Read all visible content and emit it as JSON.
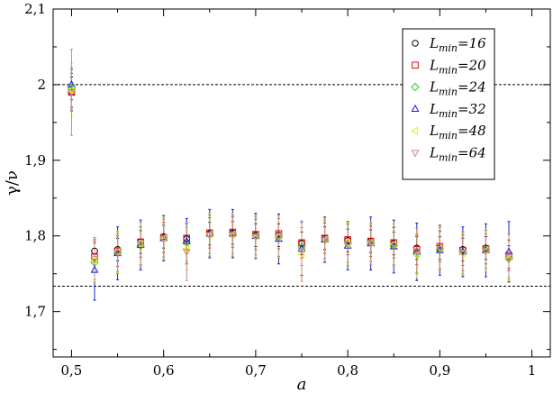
{
  "chart_data": {
    "type": "scatter",
    "title": "",
    "xlabel": "a",
    "ylabel": "γ/ν",
    "xlim": [
      0.48,
      1.02
    ],
    "ylim": [
      1.64,
      2.1
    ],
    "x_ticks": [
      0.5,
      0.6,
      0.7,
      0.8,
      0.9,
      1.0
    ],
    "x_tick_labels": [
      "0,5",
      "0,6",
      "0,7",
      "0,8",
      "0,9",
      "1"
    ],
    "y_ticks": [
      1.7,
      1.8,
      1.9,
      2.0,
      2.1
    ],
    "y_tick_labels": [
      "1,7",
      "1,8",
      "1,9",
      "2",
      "2,1"
    ],
    "reference_lines": [
      2.0,
      1.7335
    ],
    "grid": false,
    "legend_position": "top-right",
    "x": [
      0.5,
      0.525,
      0.55,
      0.575,
      0.6,
      0.625,
      0.65,
      0.675,
      0.7,
      0.725,
      0.75,
      0.775,
      0.8,
      0.825,
      0.85,
      0.875,
      0.9,
      0.925,
      0.95,
      0.975
    ],
    "series": [
      {
        "name": "16",
        "marker": "circle",
        "color": "#000000",
        "values": [
          1.99,
          1.78,
          1.782,
          1.792,
          1.799,
          1.796,
          1.803,
          1.804,
          1.801,
          1.801,
          1.79,
          1.797,
          1.794,
          1.793,
          1.79,
          1.784,
          1.784,
          1.782,
          1.784,
          1.772
        ],
        "errors": [
          0.02,
          0.015,
          0.015,
          0.015,
          0.015,
          0.015,
          0.015,
          0.015,
          0.015,
          0.015,
          0.015,
          0.015,
          0.015,
          0.015,
          0.015,
          0.015,
          0.015,
          0.015,
          0.015,
          0.015
        ]
      },
      {
        "name": "20",
        "marker": "square",
        "color": "#e8000b",
        "values": [
          1.99,
          1.772,
          1.78,
          1.792,
          1.798,
          1.797,
          1.804,
          1.805,
          1.802,
          1.803,
          1.791,
          1.797,
          1.795,
          1.793,
          1.791,
          1.782,
          1.786,
          1.781,
          1.783,
          1.774
        ],
        "errors": [
          0.025,
          0.02,
          0.02,
          0.02,
          0.02,
          0.02,
          0.02,
          0.02,
          0.02,
          0.02,
          0.02,
          0.02,
          0.02,
          0.02,
          0.02,
          0.02,
          0.02,
          0.02,
          0.02,
          0.02
        ]
      },
      {
        "name": "24",
        "marker": "diamond",
        "color": "#22cc22",
        "values": [
          1.995,
          1.765,
          1.778,
          1.787,
          1.797,
          1.791,
          1.802,
          1.802,
          1.8,
          1.798,
          1.786,
          1.795,
          1.79,
          1.791,
          1.787,
          1.776,
          1.782,
          1.779,
          1.782,
          1.77
        ],
        "errors": [
          0.028,
          0.025,
          0.025,
          0.025,
          0.025,
          0.025,
          0.025,
          0.025,
          0.025,
          0.025,
          0.025,
          0.025,
          0.025,
          0.025,
          0.025,
          0.025,
          0.025,
          0.025,
          0.025,
          0.025
        ]
      },
      {
        "name": "32",
        "marker": "triangle-up",
        "color": "#1020e0",
        "values": [
          2.0,
          1.755,
          1.777,
          1.788,
          1.797,
          1.793,
          1.803,
          1.803,
          1.8,
          1.796,
          1.783,
          1.795,
          1.787,
          1.79,
          1.786,
          1.779,
          1.781,
          1.779,
          1.781,
          1.779
        ],
        "errors": [
          0.02,
          0.04,
          0.035,
          0.033,
          0.03,
          0.03,
          0.032,
          0.032,
          0.03,
          0.033,
          0.035,
          0.03,
          0.032,
          0.035,
          0.035,
          0.038,
          0.033,
          0.033,
          0.035,
          0.04
        ]
      },
      {
        "name": "48",
        "marker": "triangle-left",
        "color": "#f0f000",
        "values": [
          1.993,
          1.768,
          1.779,
          1.79,
          1.797,
          1.783,
          1.802,
          1.802,
          1.799,
          1.799,
          1.776,
          1.795,
          1.79,
          1.791,
          1.789,
          1.775,
          1.784,
          1.777,
          1.781,
          1.771
        ],
        "errors": [
          0.035,
          0.028,
          0.028,
          0.028,
          0.028,
          0.028,
          0.028,
          0.028,
          0.028,
          0.028,
          0.03,
          0.028,
          0.028,
          0.028,
          0.028,
          0.03,
          0.028,
          0.028,
          0.028,
          0.03
        ]
      },
      {
        "name": "64",
        "marker": "triangle-down",
        "color": "#cc8888",
        "values": [
          1.99,
          1.77,
          1.778,
          1.79,
          1.796,
          1.779,
          1.801,
          1.801,
          1.799,
          1.799,
          1.78,
          1.794,
          1.789,
          1.79,
          1.788,
          1.78,
          1.783,
          1.778,
          1.78,
          1.772
        ],
        "errors": [
          0.057,
          0.028,
          0.028,
          0.028,
          0.028,
          0.038,
          0.028,
          0.028,
          0.028,
          0.028,
          0.04,
          0.028,
          0.028,
          0.028,
          0.028,
          0.03,
          0.028,
          0.028,
          0.028,
          0.03
        ]
      }
    ],
    "legend": {
      "prefix": "L",
      "subscript": "min",
      "separator": "="
    }
  }
}
